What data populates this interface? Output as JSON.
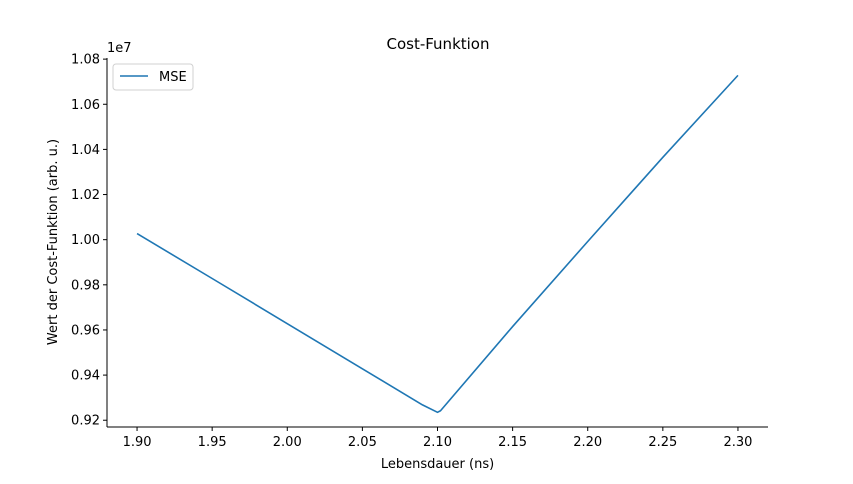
{
  "chart_data": {
    "type": "line",
    "title": "Cost-Funktion",
    "xlabel": "Lebensdauer (ns)",
    "ylabel": "Wert der Cost-Funktion (arb. u.)",
    "y_offset_label": "1e7",
    "xlim": [
      1.88,
      2.32
    ],
    "ylim": [
      9170000.0,
      10805000.0
    ],
    "x_ticks": [
      1.9,
      1.95,
      2.0,
      2.05,
      2.1,
      2.15,
      2.2,
      2.25,
      2.3
    ],
    "x_tick_labels": [
      "1.90",
      "1.95",
      "2.00",
      "2.05",
      "2.10",
      "2.15",
      "2.20",
      "2.25",
      "2.30"
    ],
    "y_ticks": [
      9200000.0,
      9400000.0,
      9600000.0,
      9800000.0,
      10000000.0,
      10200000.0,
      10400000.0,
      10600000.0,
      10800000.0
    ],
    "y_tick_labels": [
      "0.92",
      "0.94",
      "0.96",
      "0.98",
      "1.00",
      "1.02",
      "1.04",
      "1.06",
      "1.08"
    ],
    "grid": false,
    "legend_position": "top-left",
    "series": [
      {
        "name": "MSE",
        "color": "#1f77b4",
        "x": [
          1.9,
          1.95,
          2.0,
          2.05,
          2.09,
          2.1,
          2.102,
          2.15,
          2.2,
          2.25,
          2.3
        ],
        "y": [
          10027000,
          9828000,
          9628000,
          9428000,
          9268000,
          9235000,
          9242000,
          9615000,
          9992000,
          10365000,
          10728000
        ]
      }
    ]
  }
}
